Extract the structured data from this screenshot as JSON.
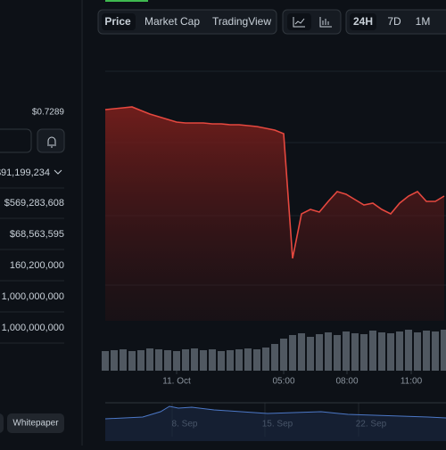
{
  "sidebar": {
    "price": "$0.7289",
    "rows": [
      "$91,199,234",
      "$569,283,608",
      "$68,563,595",
      "160,200,000",
      "1,000,000,000",
      "1,000,000,000"
    ],
    "whitepaper": "Whitepaper"
  },
  "tabs": {
    "views": [
      "Price",
      "Market Cap",
      "TradingView"
    ],
    "ranges": [
      "24H",
      "7D",
      "1M"
    ]
  },
  "chart_data": {
    "type": "area",
    "color": "#e5483f",
    "x": [
      0,
      1,
      2,
      3,
      4,
      5,
      6,
      7,
      8,
      9,
      10,
      11,
      12,
      13,
      14,
      15,
      16,
      17,
      18,
      19,
      20,
      21,
      22,
      23,
      24,
      25,
      26,
      27,
      28,
      29,
      30,
      31,
      32,
      33,
      34,
      35,
      36,
      37,
      38
    ],
    "xlim": [
      0,
      38
    ],
    "xticks": [
      {
        "value": 8,
        "label": "11. Oct"
      },
      {
        "value": 20,
        "label": "05:00"
      },
      {
        "value": 27.1,
        "label": "08:00"
      },
      {
        "value": 34.3,
        "label": "11:00"
      }
    ],
    "values": [
      237,
      238,
      239,
      240,
      236,
      232,
      229,
      226,
      223,
      222,
      222,
      222,
      221,
      221,
      220,
      220,
      219,
      218,
      216,
      214,
      210,
      70,
      120,
      125,
      122,
      134,
      145,
      142,
      136,
      130,
      132,
      125,
      120,
      132,
      140,
      145,
      134,
      134,
      140
    ],
    "ylim": [
      0,
      260
    ],
    "volume": [
      22,
      23,
      24,
      22,
      23,
      25,
      24,
      23,
      22,
      24,
      25,
      23,
      24,
      22,
      23,
      24,
      25,
      24,
      26,
      30,
      36,
      40,
      42,
      38,
      41,
      43,
      40,
      44,
      42,
      41,
      45,
      43,
      42,
      44,
      46,
      43,
      45,
      44,
      46
    ],
    "volume_ylim": [
      0,
      50
    ],
    "navigator_ticks": [
      "8. Sep",
      "15. Sep",
      "22. Sep"
    ]
  }
}
